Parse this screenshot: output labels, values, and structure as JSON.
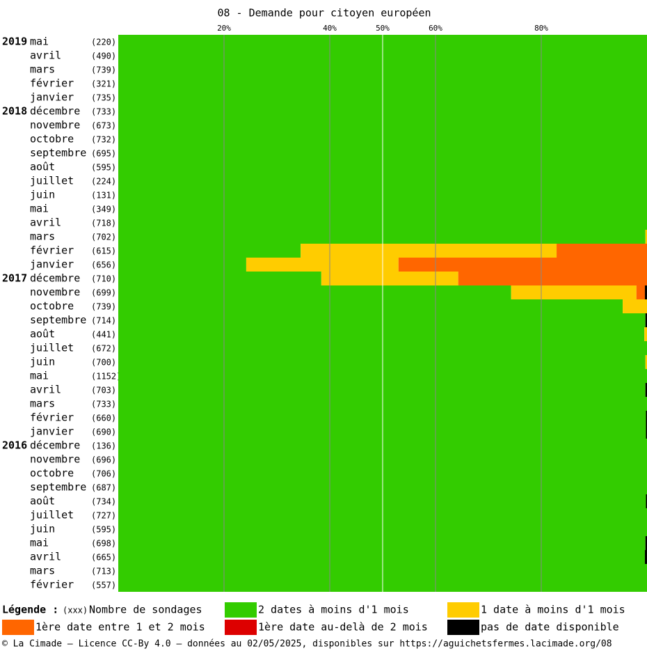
{
  "chart_data": {
    "type": "stacked-barh",
    "title": "08 - Demande pour citoyen européen",
    "years": [
      "2019",
      null,
      null,
      null,
      null,
      "2018",
      null,
      null,
      null,
      null,
      null,
      null,
      null,
      null,
      null,
      null,
      null,
      "2017",
      null,
      null,
      null,
      null,
      null,
      null,
      null,
      null,
      null,
      null,
      null,
      "2016",
      null,
      null,
      null,
      null,
      null,
      null,
      null,
      null,
      null,
      null
    ],
    "categories": [
      "mai",
      "avril",
      "mars",
      "février",
      "janvier",
      "décembre",
      "novembre",
      "octobre",
      "septembre",
      "août",
      "juillet",
      "juin",
      "mai",
      "avril",
      "mars",
      "février",
      "janvier",
      "décembre",
      "novembre",
      "octobre",
      "septembre",
      "août",
      "juillet",
      "juin",
      "mai",
      "avril",
      "mars",
      "février",
      "janvier",
      "décembre",
      "novembre",
      "octobre",
      "septembre",
      "août",
      "juillet",
      "juin",
      "mai",
      "avril",
      "mars",
      "février"
    ],
    "counts": [
      {
        "value": 220,
        "label": "(220)"
      },
      {
        "value": 490,
        "label": "(490)"
      },
      {
        "value": 739,
        "label": "(739)"
      },
      {
        "value": 321,
        "label": "(321)"
      },
      {
        "value": 735,
        "label": "(735)"
      },
      {
        "value": 733,
        "label": "(733)"
      },
      {
        "value": 673,
        "label": "(673)"
      },
      {
        "value": 732,
        "label": "(732)"
      },
      {
        "value": 695,
        "label": "(695)"
      },
      {
        "value": 595,
        "label": "(595)"
      },
      {
        "value": 224,
        "label": "(224)"
      },
      {
        "value": 131,
        "label": "(131)"
      },
      {
        "value": 349,
        "label": "(349)"
      },
      {
        "value": 718,
        "label": "(718)"
      },
      {
        "value": 702,
        "label": "(702)"
      },
      {
        "value": 615,
        "label": "(615)"
      },
      {
        "value": 656,
        "label": "(656)"
      },
      {
        "value": 710,
        "label": "(710)"
      },
      {
        "value": 699,
        "label": "(699)"
      },
      {
        "value": 739,
        "label": "(739)"
      },
      {
        "value": 714,
        "label": "(714)"
      },
      {
        "value": 441,
        "label": "(441)"
      },
      {
        "value": 672,
        "label": "(672)"
      },
      {
        "value": 700,
        "label": "(700)"
      },
      {
        "value": 1152,
        "label": "(1152)"
      },
      {
        "value": 703,
        "label": "(703)"
      },
      {
        "value": 733,
        "label": "(733)"
      },
      {
        "value": 660,
        "label": "(660)"
      },
      {
        "value": 690,
        "label": "(690)"
      },
      {
        "value": 136,
        "label": "(136)"
      },
      {
        "value": 696,
        "label": "(696)"
      },
      {
        "value": 706,
        "label": "(706)"
      },
      {
        "value": 687,
        "label": "(687)"
      },
      {
        "value": 734,
        "label": "(734)"
      },
      {
        "value": 727,
        "label": "(727)"
      },
      {
        "value": 595,
        "label": "(595)"
      },
      {
        "value": 698,
        "label": "(698)"
      },
      {
        "value": 665,
        "label": "(665)"
      },
      {
        "value": 713,
        "label": "(713)"
      },
      {
        "value": 557,
        "label": "(557)"
      }
    ],
    "series": [
      {
        "name": "2 dates à moins d'1 mois",
        "color": "#33cc00",
        "values": [
          100,
          100,
          100,
          100,
          100,
          100,
          100,
          100,
          100,
          100,
          100,
          100,
          100,
          100,
          99.7,
          34.5,
          24.2,
          38.4,
          74.3,
          95.4,
          99.7,
          99.5,
          100,
          99.7,
          100,
          99.7,
          100,
          99.8,
          99.8,
          100,
          100,
          100,
          100,
          99.8,
          100,
          100,
          99.7,
          99.6,
          100,
          100
        ]
      },
      {
        "name": "1 date à moins d'1 mois",
        "color": "#ffcc00",
        "values": [
          0,
          0,
          0,
          0,
          0,
          0,
          0,
          0,
          0,
          0,
          0,
          0,
          0,
          0,
          0.3,
          48.4,
          28.8,
          25.9,
          23.7,
          4.6,
          0,
          0.5,
          0,
          0.3,
          0,
          0,
          0,
          0,
          0,
          0,
          0,
          0,
          0,
          0,
          0,
          0,
          0,
          0,
          0,
          0
        ]
      },
      {
        "name": "1ère date entre 1 et 2 mois",
        "color": "#ff6600",
        "values": [
          0,
          0,
          0,
          0,
          0,
          0,
          0,
          0,
          0,
          0,
          0,
          0,
          0,
          0,
          0,
          17.1,
          47,
          35.7,
          1.6,
          0,
          0,
          0,
          0,
          0,
          0,
          0,
          0,
          0,
          0,
          0,
          0,
          0,
          0,
          0,
          0,
          0,
          0,
          0,
          0,
          0
        ]
      },
      {
        "name": "1ère date au-delà de 2 mois",
        "color": "#dd0000",
        "values": [
          0,
          0,
          0,
          0,
          0,
          0,
          0,
          0,
          0,
          0,
          0,
          0,
          0,
          0,
          0,
          0,
          0,
          0,
          0,
          0,
          0,
          0,
          0,
          0,
          0,
          0,
          0,
          0,
          0,
          0,
          0,
          0,
          0,
          0,
          0,
          0,
          0,
          0,
          0,
          0
        ]
      },
      {
        "name": "pas de date disponible",
        "color": "#000000",
        "values": [
          0,
          0,
          0,
          0,
          0,
          0,
          0,
          0,
          0,
          0,
          0,
          0,
          0,
          0,
          0,
          0,
          0,
          0,
          0.4,
          0,
          0.3,
          0,
          0,
          0,
          0,
          0.3,
          0,
          0.2,
          0.2,
          0,
          0,
          0,
          0,
          0.2,
          0,
          0,
          0.3,
          0.4,
          0,
          0
        ]
      }
    ],
    "xlim": [
      0,
      100
    ],
    "xticks": [
      {
        "value": 20,
        "label": "20%"
      },
      {
        "value": 40,
        "label": "40%"
      },
      {
        "value": 50,
        "label": "50%"
      },
      {
        "value": 60,
        "label": "60%"
      },
      {
        "value": 80,
        "label": "80%"
      }
    ],
    "grid_colors": [
      "#888888",
      "#888888",
      "#ffffff",
      "#888888",
      "#888888"
    ],
    "legend_title": "Légende :",
    "count_legend_symbol": "(xxx)",
    "count_legend_label": "Nombre de sondages",
    "footer": "© La Cimade — Licence CC-By 4.0 — données au 02/05/2025, disponibles sur https://aguichetsfermes.lacimade.org/08"
  }
}
